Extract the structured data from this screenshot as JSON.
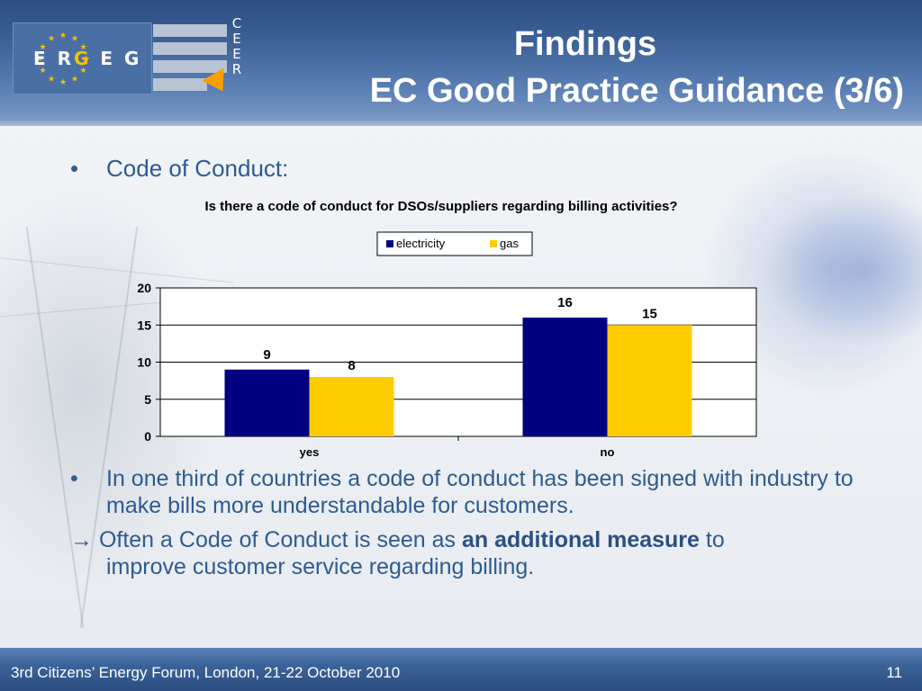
{
  "header": {
    "title_line1": "Findings",
    "title_line2": "EC Good Practice Guidance (3/6)",
    "logo_left_text": {
      "part1": "E R",
      "part2": "G",
      "part3": " E G"
    },
    "logo_right_letters": [
      "C",
      "E",
      "E",
      "R"
    ]
  },
  "content": {
    "bullet_symbol": "•",
    "bullet1": "Code of Conduct:",
    "bullet2": "In one third of countries a code of conduct has been signed with industry to make bills more understandable for customers.",
    "arrow_symbol": "→",
    "arrow_text_before": " Often a Code of Conduct is seen as ",
    "arrow_text_bold": "an additional measure",
    "arrow_text_after": " to",
    "arrow_text_cont": "improve customer service regarding billing."
  },
  "chart_data": {
    "type": "bar",
    "title": "Is there a code of conduct for DSOs/suppliers regarding billing activities?",
    "categories": [
      "yes",
      "no"
    ],
    "series": [
      {
        "name": "electricity",
        "values": [
          9,
          16
        ],
        "color": "#000080"
      },
      {
        "name": "gas",
        "values": [
          8,
          15
        ],
        "color": "#ffcc00"
      }
    ],
    "yticks": [
      0,
      5,
      10,
      15,
      20
    ],
    "ylim": [
      0,
      20
    ],
    "grid": true,
    "legend": "top-center",
    "data_labels": true
  },
  "footer": {
    "event": "3rd Citizens’ Energy Forum, London, 21-22 October 2010",
    "page_number": "11"
  },
  "colors": {
    "header_blue": "#3d6399",
    "text_blue": "#2f5b8f",
    "electricity": "#000080",
    "gas": "#ffcc00"
  }
}
